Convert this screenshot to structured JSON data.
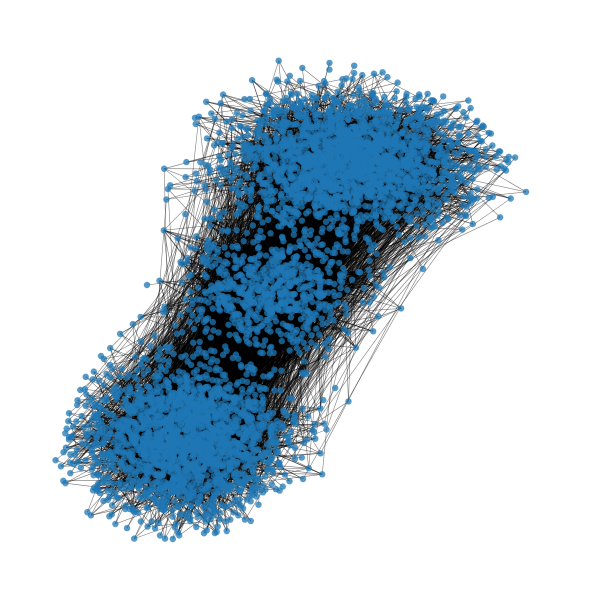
{
  "graph": {
    "type": "network-graph",
    "node_color": "#1f77b4",
    "node_opacity": 0.75,
    "edge_color": "#000000",
    "background": "#ffffff",
    "communities": [
      {
        "name": "upper-cluster"
      },
      {
        "name": "lower-cluster"
      }
    ]
  }
}
